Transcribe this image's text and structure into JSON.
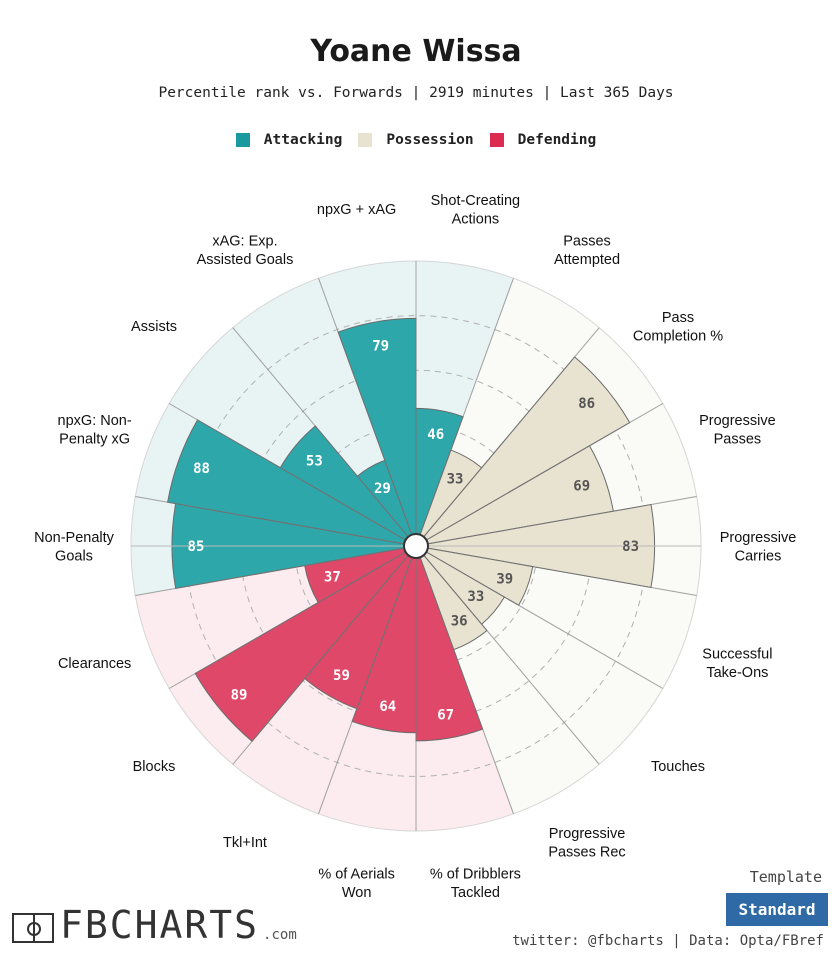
{
  "header": {
    "title": "Yoane Wissa",
    "subtitle": "Percentile rank vs. Forwards | 2919 minutes | Last 365 Days"
  },
  "legend": [
    {
      "label": "Attacking",
      "color": "#1a9a9f"
    },
    {
      "label": "Possession",
      "color": "#e8e2d0"
    },
    {
      "label": "Defending",
      "color": "#dd2a50"
    }
  ],
  "chart_data": {
    "type": "polar-bar",
    "scale": "percentile",
    "range": [
      0,
      100
    ],
    "categories": [
      {
        "label": "Shot-Creating\nActions",
        "value": 46,
        "group": "Attacking"
      },
      {
        "label": "Passes\nAttempted",
        "value": 33,
        "group": "Possession"
      },
      {
        "label": "Pass\nCompletion %",
        "value": 86,
        "group": "Possession"
      },
      {
        "label": "Progressive\nPasses",
        "value": 69,
        "group": "Possession"
      },
      {
        "label": "Progressive\nCarries",
        "value": 83,
        "group": "Possession"
      },
      {
        "label": "Successful\nTake-Ons",
        "value": 39,
        "group": "Possession"
      },
      {
        "label": "Touches",
        "value": 33,
        "group": "Possession"
      },
      {
        "label": "Progressive\nPasses Rec",
        "value": 36,
        "group": "Possession"
      },
      {
        "label": "% of Dribblers\nTackled",
        "value": 67,
        "group": "Defending"
      },
      {
        "label": "% of Aerials\nWon",
        "value": 64,
        "group": "Defending"
      },
      {
        "label": "Tkl+Int",
        "value": 59,
        "group": "Defending"
      },
      {
        "label": "Blocks",
        "value": 89,
        "group": "Defending"
      },
      {
        "label": "Clearances",
        "value": 37,
        "group": "Defending"
      },
      {
        "label": "Non-Penalty\nGoals",
        "value": 85,
        "group": "Attacking"
      },
      {
        "label": "npxG: Non-\nPenalty xG",
        "value": 88,
        "group": "Attacking"
      },
      {
        "label": "Assists",
        "value": 53,
        "group": "Attacking"
      },
      {
        "label": "xAG: Exp.\nAssisted Goals",
        "value": 29,
        "group": "Attacking"
      },
      {
        "label": "npxG + xAG",
        "value": 79,
        "group": "Attacking"
      }
    ],
    "colors": {
      "Attacking": {
        "bar": "#2ea7ab",
        "bg": "#e8f4f4",
        "label_fill": "#1a9a9f"
      },
      "Possession": {
        "bar": "#e8e2d0",
        "bg": "#fafaf7",
        "label_fill": "#e8e2d0"
      },
      "Defending": {
        "bar": "#e0486a",
        "bg": "#fcecef",
        "label_fill": "#dd2a50"
      }
    }
  },
  "branding": {
    "logo_text": "FBCHARTS",
    "logo_suffix": ".com"
  },
  "template": {
    "label": "Template",
    "button": "Standard"
  },
  "footer": {
    "credits": "twitter: @fbcharts | Data: Opta/FBref"
  }
}
